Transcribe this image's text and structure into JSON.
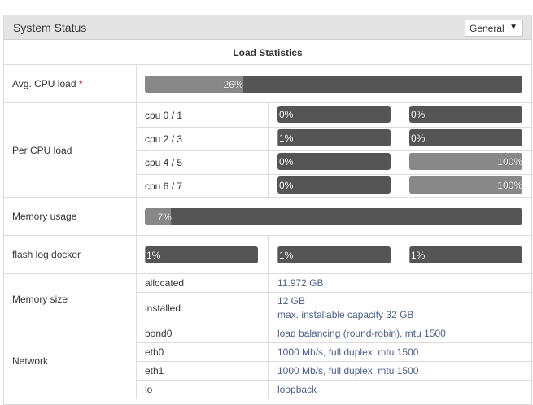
{
  "panel": {
    "title": "System Status",
    "view_select": "General"
  },
  "load_statistics": {
    "heading": "Load Statistics"
  },
  "avg_cpu": {
    "label": "Avg. CPU load",
    "required_mark": "*",
    "percent": 26,
    "text": "26%"
  },
  "per_cpu": {
    "label": "Per CPU load",
    "rows": [
      {
        "name": "cpu 0 / 1",
        "a": {
          "percent": 0,
          "text": "0%"
        },
        "b": {
          "percent": 0,
          "text": "0%"
        }
      },
      {
        "name": "cpu 2 / 3",
        "a": {
          "percent": 1,
          "text": "1%"
        },
        "b": {
          "percent": 0,
          "text": "0%"
        }
      },
      {
        "name": "cpu 4 / 5",
        "a": {
          "percent": 0,
          "text": "0%"
        },
        "b": {
          "percent": 100,
          "text": "100%"
        }
      },
      {
        "name": "cpu 6 / 7",
        "a": {
          "percent": 0,
          "text": "0%"
        },
        "b": {
          "percent": 100,
          "text": "100%"
        }
      }
    ]
  },
  "memory_usage": {
    "label": "Memory usage",
    "percent": 7,
    "text": "7%"
  },
  "flash_log_docker": {
    "label": "flash log docker",
    "bars": [
      {
        "percent": 1,
        "text": "1%"
      },
      {
        "percent": 1,
        "text": "1%"
      },
      {
        "percent": 1,
        "text": "1%"
      }
    ]
  },
  "memory_size": {
    "label": "Memory size",
    "allocated_label": "allocated",
    "allocated_value": "11.972 GB",
    "installed_label": "installed",
    "installed_value": "12 GB",
    "installed_max": "max. installable capacity 32 GB"
  },
  "network": {
    "label": "Network",
    "interfaces": [
      {
        "name": "bond0",
        "desc": "load balancing (round-robin), mtu 1500"
      },
      {
        "name": "eth0",
        "desc": "1000 Mb/s, full duplex, mtu 1500"
      },
      {
        "name": "eth1",
        "desc": "1000 Mb/s, full duplex, mtu 1500"
      },
      {
        "name": "lo",
        "desc": "loopback"
      }
    ]
  }
}
